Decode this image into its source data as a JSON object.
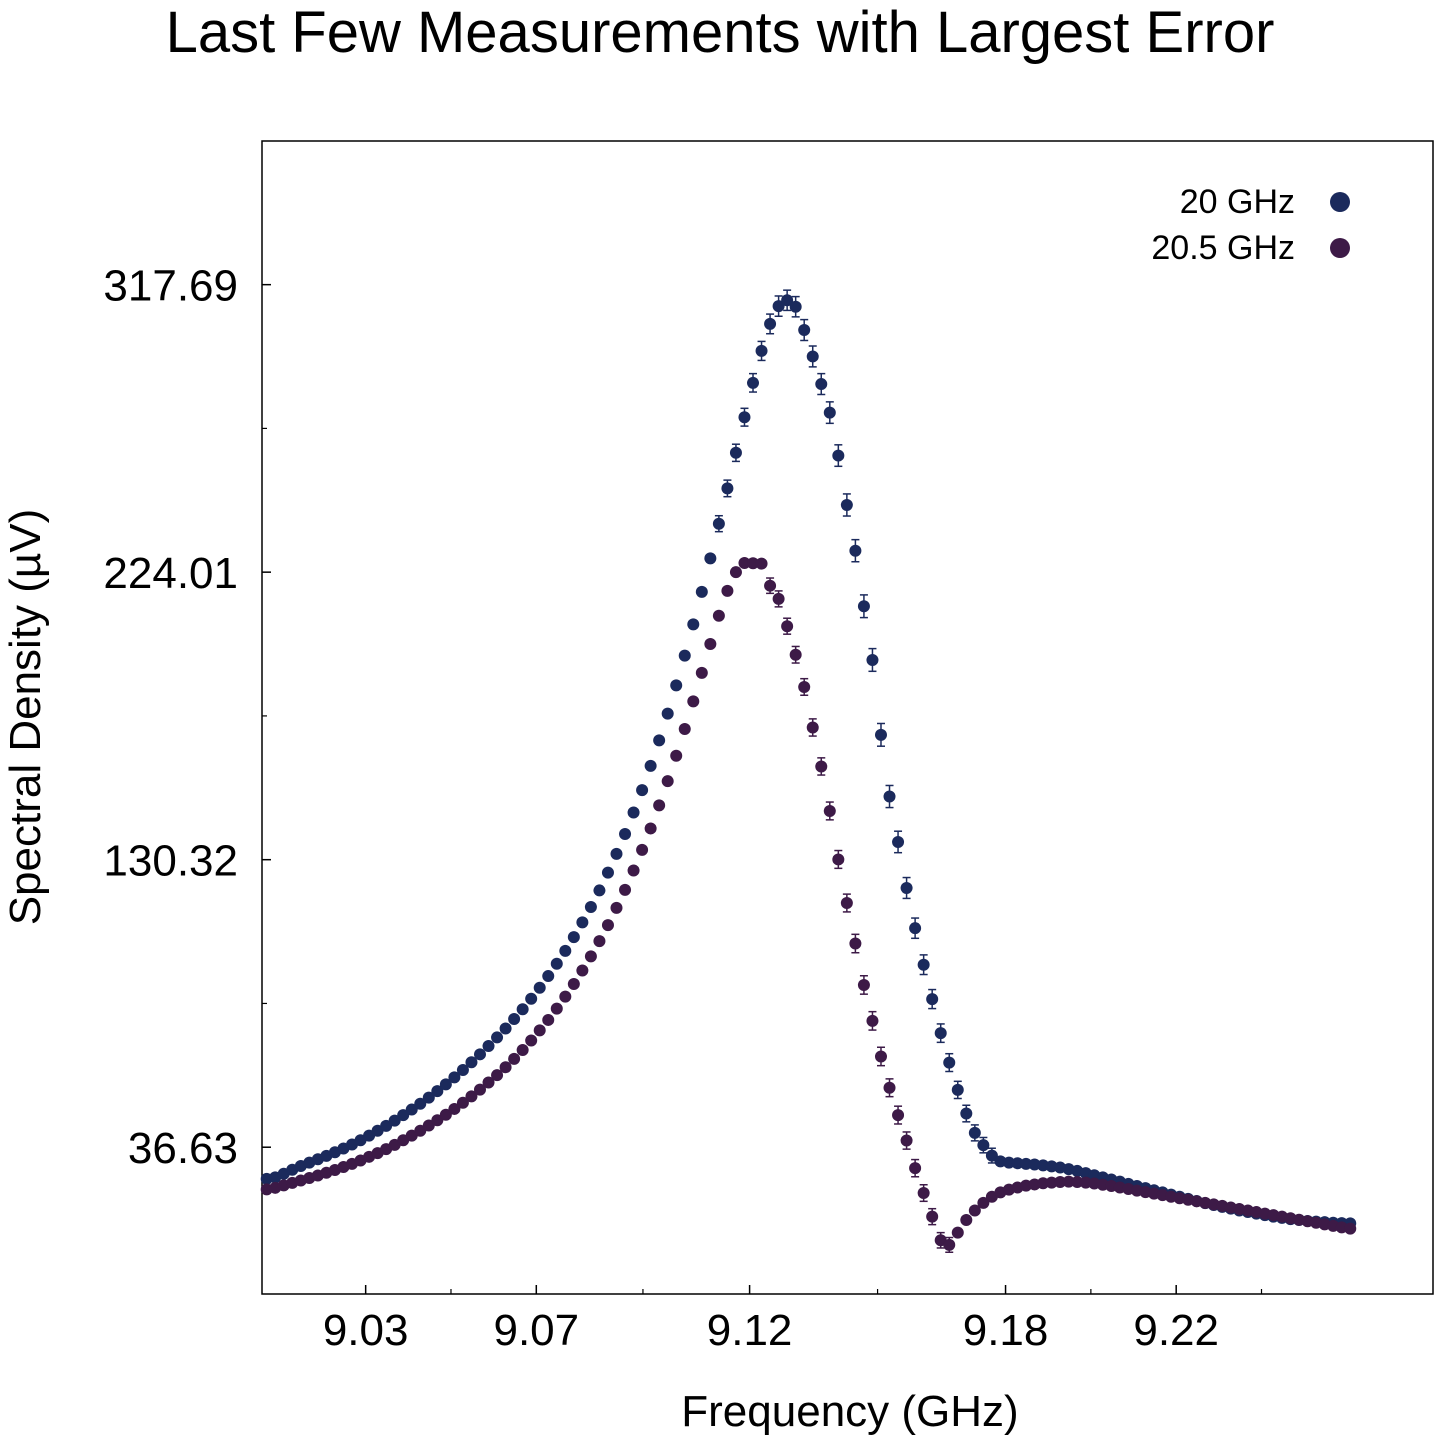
{
  "chart_data": {
    "type": "scatter",
    "title": "Last Few Measurements with Largest Error",
    "xlabel": "Frequency (GHz)",
    "ylabel": "Spectral Density (µV)",
    "xlim": [
      9.0057,
      9.2802
    ],
    "ylim": [
      -11.2,
      364.5
    ],
    "x_ticks": [
      9.03,
      9.07,
      9.12,
      9.18,
      9.22
    ],
    "x_tick_labels": [
      "9.03",
      "9.07",
      "9.12",
      "9.18",
      "9.22"
    ],
    "y_ticks": [
      36.63,
      130.32,
      224.01,
      317.69
    ],
    "y_tick_labels": [
      "36.63",
      "130.32",
      "224.01",
      "317.69"
    ],
    "grid": false,
    "legend_position": "top-right",
    "marker": "circle",
    "error_bars": true,
    "x_start": 9.0068,
    "x_step": 0.002,
    "series": [
      {
        "name": "20 GHz",
        "color": "#1b2a5c",
        "y": [
          26.3,
          26.8,
          28.0,
          29.3,
          30.5,
          31.6,
          32.7,
          33.8,
          35.0,
          36.2,
          37.5,
          38.9,
          40.4,
          42.0,
          43.6,
          45.3,
          47.1,
          48.9,
          50.8,
          52.8,
          54.9,
          57.1,
          59.4,
          61.8,
          64.3,
          66.9,
          69.6,
          72.4,
          75.3,
          78.4,
          81.6,
          85.0,
          88.6,
          92.4,
          96.4,
          100.6,
          105.1,
          109.9,
          114.9,
          120.3,
          126.1,
          132.2,
          138.7,
          145.7,
          153.0,
          160.9,
          169.2,
          177.9,
          187.1,
          196.8,
          207.0,
          217.6,
          228.5,
          239.8,
          251.3,
          262.9,
          274.5,
          285.7,
          296.1,
          304.9,
          310.7,
          312.6,
          310.5,
          302.9,
          294.3,
          285.3,
          276.0,
          262.0,
          245.9,
          231.0,
          212.9,
          195.4,
          171.0,
          150.9,
          136.1,
          121.1,
          108.0,
          96.1,
          84.9,
          73.8,
          64.2,
          55.3,
          47.6,
          41.3,
          37.3,
          33.9,
          32.0,
          31.6,
          31.4,
          31.2,
          31.0,
          30.7,
          30.4,
          30.0,
          29.5,
          28.9,
          28.2,
          27.5,
          26.8,
          26.1,
          25.4,
          24.7,
          24.0,
          23.3,
          22.6,
          21.9,
          21.2,
          20.5,
          19.8,
          19.1,
          18.4,
          17.8,
          17.2,
          16.6,
          16.0,
          15.5,
          15.0,
          14.5,
          14.0,
          13.6,
          13.2,
          12.9,
          12.6,
          12.4,
          12.2,
          12.0,
          11.9,
          11.8
        ],
        "err": [
          1.0,
          1.0,
          1.0,
          1.0,
          1.0,
          1.0,
          1.0,
          1.0,
          1.0,
          1.0,
          1.0,
          1.0,
          1.0,
          1.0,
          1.0,
          1.0,
          1.0,
          1.0,
          1.0,
          1.0,
          1.0,
          1.0,
          1.0,
          1.0,
          1.0,
          1.0,
          1.0,
          1.0,
          1.0,
          1.0,
          1.0,
          1.0,
          1.0,
          1.0,
          1.0,
          1.0,
          1.0,
          1.0,
          1.0,
          1.0,
          1.0,
          1.0,
          1.0,
          1.0,
          1.0,
          1.0,
          1.0,
          1.0,
          1.0,
          1.0,
          1.0,
          1.0,
          1.0,
          2.6,
          2.7,
          2.8,
          2.9,
          3.0,
          3.1,
          3.2,
          3.3,
          3.3,
          3.3,
          3.4,
          3.4,
          3.4,
          3.5,
          3.5,
          3.6,
          3.6,
          3.7,
          3.7,
          3.7,
          3.6,
          3.5,
          3.4,
          3.3,
          3.2,
          3.1,
          3.0,
          2.9,
          2.8,
          2.7,
          2.6,
          2.5,
          2.4,
          1.0,
          1.0,
          1.0,
          1.0,
          1.0,
          1.0,
          1.0,
          1.0,
          1.0,
          1.0,
          1.0,
          1.0,
          1.0,
          1.0,
          1.0,
          1.0,
          1.0,
          1.0,
          1.0,
          1.0,
          1.0,
          1.0,
          1.0,
          1.0,
          1.0,
          1.0,
          1.0,
          1.0,
          1.0,
          1.0,
          1.0,
          1.0,
          1.0,
          1.0,
          1.0,
          1.0,
          1.0,
          1.0,
          1.0,
          1.0,
          1.0,
          1.0
        ]
      },
      {
        "name": "20.5 GHz",
        "color": "#3d1a47",
        "y": [
          22.9,
          23.4,
          24.2,
          25.0,
          25.8,
          26.6,
          27.4,
          28.3,
          29.2,
          30.2,
          31.2,
          32.3,
          33.5,
          34.7,
          36.0,
          37.4,
          38.9,
          40.4,
          42.0,
          43.7,
          45.4,
          47.2,
          49.1,
          51.1,
          53.2,
          55.4,
          57.7,
          60.1,
          62.7,
          65.4,
          68.3,
          71.4,
          74.7,
          78.1,
          81.8,
          85.7,
          89.8,
          94.2,
          98.8,
          103.8,
          109.0,
          114.6,
          120.5,
          126.8,
          133.5,
          140.5,
          148.0,
          155.9,
          164.2,
          172.9,
          181.9,
          191.2,
          200.6,
          209.8,
          217.9,
          224.0,
          227.0,
          226.9,
          226.8,
          219.6,
          215.3,
          206.4,
          197.1,
          186.6,
          173.4,
          160.7,
          146.2,
          130.4,
          116.2,
          103.0,
          89.5,
          77.8,
          66.2,
          56.0,
          47.1,
          38.8,
          29.8,
          21.7,
          14.0,
          6.3,
          4.8,
          8.8,
          12.9,
          16.0,
          18.5,
          20.5,
          21.9,
          22.8,
          23.5,
          24.1,
          24.5,
          24.9,
          25.1,
          25.3,
          25.4,
          25.3,
          25.1,
          24.8,
          24.4,
          24.0,
          23.5,
          23.0,
          22.5,
          22.0,
          21.5,
          21.0,
          20.5,
          20.0,
          19.5,
          19.0,
          18.5,
          18.0,
          17.5,
          17.0,
          16.5,
          16.0,
          15.5,
          15.0,
          14.5,
          14.0,
          13.5,
          13.0,
          12.5,
          12.0,
          11.5,
          11.0,
          10.5,
          10.1
        ],
        "err": [
          1.0,
          1.0,
          1.0,
          1.0,
          1.0,
          1.0,
          1.0,
          1.0,
          1.0,
          1.0,
          1.0,
          1.0,
          1.0,
          1.0,
          1.0,
          1.0,
          1.0,
          1.0,
          1.0,
          1.0,
          1.0,
          1.0,
          1.0,
          1.0,
          1.0,
          1.0,
          1.0,
          1.0,
          1.0,
          1.0,
          1.0,
          1.0,
          1.0,
          1.0,
          1.0,
          1.0,
          1.0,
          1.0,
          1.0,
          1.0,
          1.0,
          1.0,
          1.0,
          1.0,
          1.0,
          1.0,
          1.0,
          1.0,
          1.0,
          1.0,
          1.0,
          1.0,
          1.0,
          1.0,
          1.0,
          1.0,
          1.0,
          1.0,
          1.0,
          2.5,
          2.6,
          2.6,
          2.7,
          2.7,
          2.8,
          2.8,
          2.9,
          2.9,
          2.9,
          3.0,
          3.0,
          3.0,
          3.0,
          2.9,
          2.9,
          2.8,
          2.8,
          2.7,
          2.6,
          2.5,
          2.4,
          1.0,
          1.0,
          1.0,
          1.0,
          1.0,
          1.0,
          1.0,
          1.0,
          1.0,
          1.0,
          1.0,
          1.0,
          1.0,
          1.0,
          1.0,
          1.0,
          1.0,
          1.0,
          1.0,
          1.0,
          1.0,
          1.0,
          1.0,
          1.0,
          1.0,
          1.0,
          1.0,
          1.0,
          1.0,
          1.0,
          1.0,
          1.0,
          1.0,
          1.0,
          1.0,
          1.0,
          1.0,
          1.0,
          1.0,
          1.0,
          1.0,
          1.0,
          1.0,
          1.0,
          1.0,
          1.0,
          1.0
        ]
      }
    ]
  }
}
